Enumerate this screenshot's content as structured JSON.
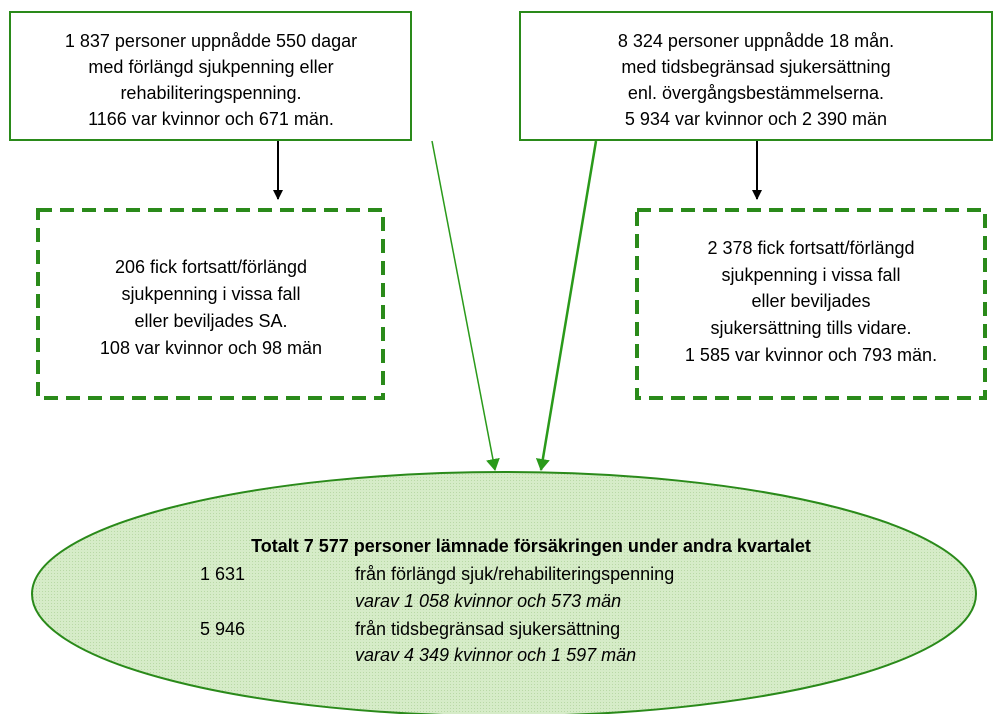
{
  "nodes": [
    {
      "lines": [
        "1 837 personer uppnådde 550 dagar",
        "med förlängd sjukpenning eller",
        "rehabiliteringspenning.",
        "1166 var kvinnor och 671 män."
      ]
    },
    {
      "lines": [
        "8 324 personer uppnådde 18 mån.",
        "med tidsbegränsad sjukersättning",
        "enl. övergångsbestämmelserna.",
        "5 934 var kvinnor och 2 390 män"
      ]
    },
    {
      "lines": [
        "206 fick fortsatt/förlängd",
        "sjukpenning i vissa fall",
        "eller beviljades SA.",
        "108 var kvinnor och 98 män"
      ]
    },
    {
      "lines": [
        "2 378 fick fortsatt/förlängd",
        "sjukpenning i vissa fall",
        "eller beviljades",
        "sjukersättning tills vidare.",
        "1 585 var kvinnor och 793 män."
      ]
    }
  ],
  "summary": {
    "title": "Totalt 7 577 personer lämnade försäkringen under andra kvartalet",
    "rows": [
      {
        "number": "1 631",
        "text": "från förlängd sjuk/rehabiliteringspenning",
        "detail": "varav 1 058 kvinnor och 573 män"
      },
      {
        "number": "5 946",
        "text": "från tidsbegränsad sjukersättning",
        "detail": "varav 4 349 kvinnor och 1 597 män"
      }
    ]
  }
}
